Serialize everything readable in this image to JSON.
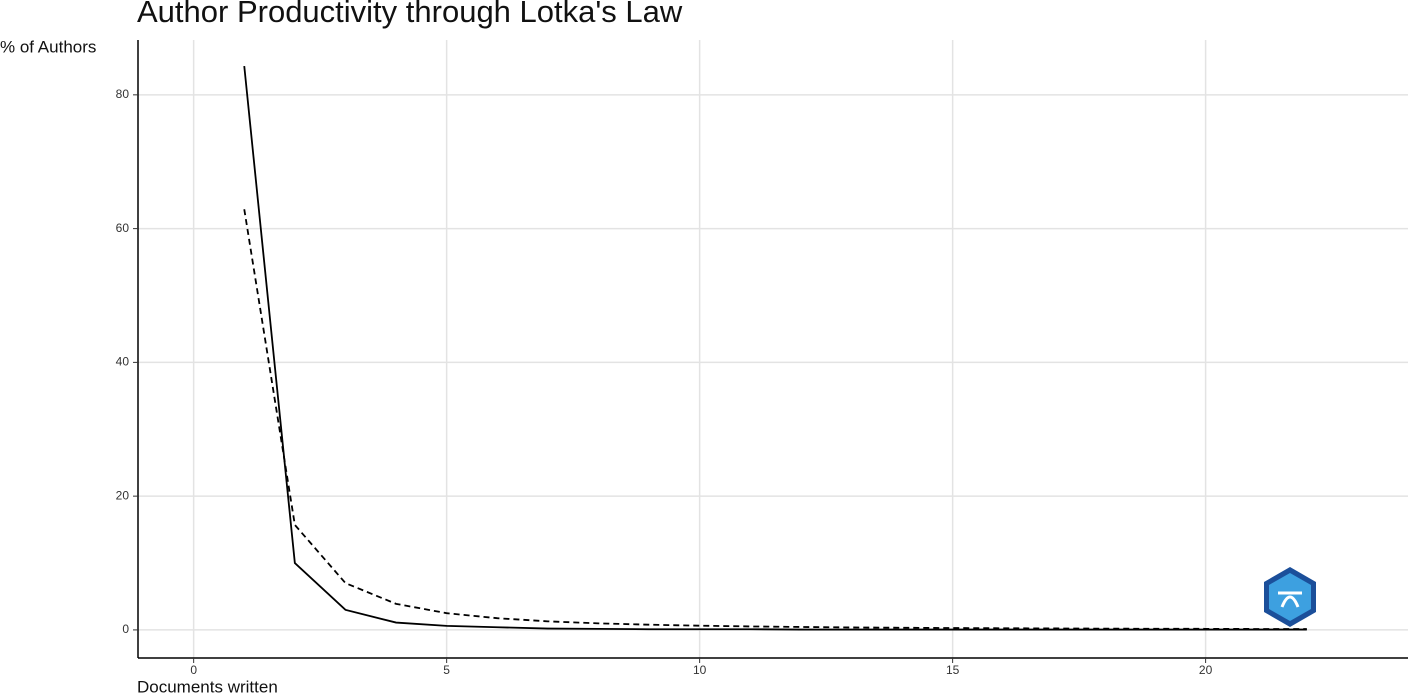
{
  "chart_data": {
    "type": "line",
    "title": "Author Productivity through Lotka's Law",
    "y_label": "% of Authors",
    "x_label": "Documents written",
    "x": [
      1,
      2,
      3,
      4,
      5,
      6,
      7,
      8,
      9,
      10,
      11,
      12,
      13,
      14,
      15,
      16,
      17,
      18,
      19,
      20,
      21,
      22
    ],
    "series": [
      {
        "color": "#000000",
        "dash": "solid",
        "values": [
          84.3,
          10.0,
          3.0,
          1.1,
          0.6,
          0.4,
          0.2,
          0.15,
          0.1,
          0.1,
          0.1,
          0.05,
          0.05,
          0.05,
          0.05,
          0.05,
          0.05,
          0.05,
          0.05,
          0.05,
          0.05,
          0.05
        ]
      },
      {
        "color": "#000000",
        "dash": "dashed",
        "values": [
          62.9,
          15.7,
          7.0,
          3.9,
          2.5,
          1.75,
          1.28,
          0.98,
          0.78,
          0.63,
          0.52,
          0.44,
          0.37,
          0.32,
          0.28,
          0.25,
          0.22,
          0.19,
          0.17,
          0.16,
          0.14,
          0.13
        ]
      }
    ],
    "xlim": [
      -1.1,
      24
    ],
    "xticks": [
      0,
      5,
      10,
      15,
      20
    ],
    "ylim": [
      -4.2,
      88.2
    ],
    "yticks": [
      0,
      20,
      40,
      60,
      80
    ],
    "grid": true
  }
}
